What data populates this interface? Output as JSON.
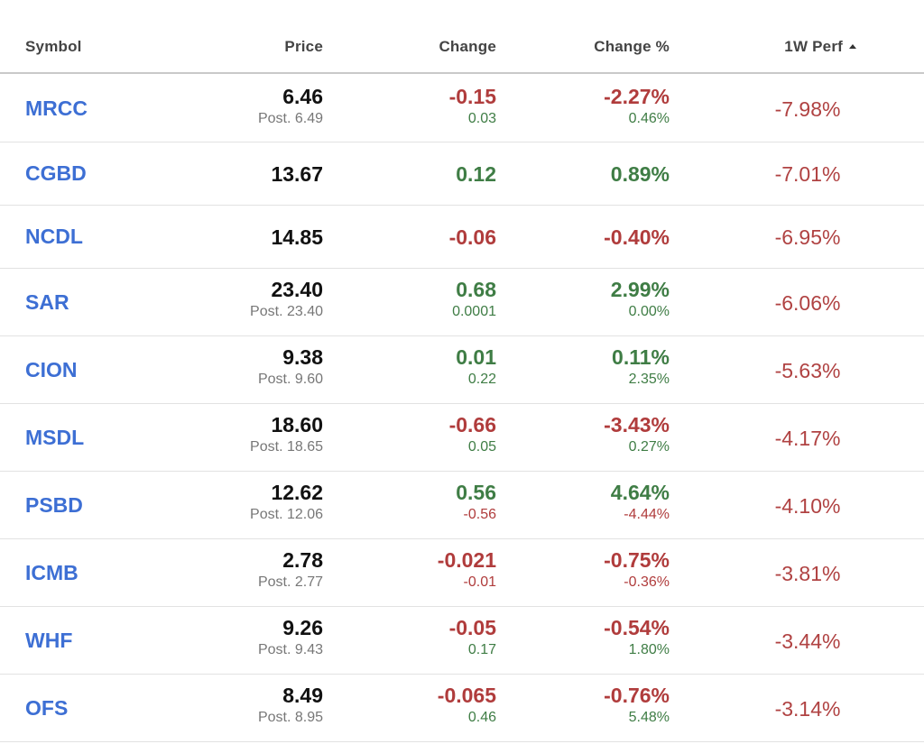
{
  "header": {
    "symbol": "Symbol",
    "price": "Price",
    "change": "Change",
    "change_pct": "Change %",
    "perf_1w": "1W Perf",
    "sort_icon": "sort-ascending-triangle"
  },
  "colors": {
    "symbol_link": "#3d6fd4",
    "negative": "#b03c3c",
    "positive": "#3f7d45",
    "price": "#111111",
    "muted": "#777777"
  },
  "rows": [
    {
      "symbol": "MRCC",
      "price": "6.46",
      "post": "Post. 6.49",
      "change": "-0.15",
      "change_dir": "neg",
      "post_change": "0.03",
      "post_change_dir": "pos",
      "change_pct": "-2.27%",
      "post_change_pct": "0.46%",
      "perf": "-7.98%"
    },
    {
      "symbol": "CGBD",
      "price": "13.67",
      "post": "",
      "change": "0.12",
      "change_dir": "pos",
      "post_change": "",
      "post_change_dir": "",
      "change_pct": "0.89%",
      "post_change_pct": "",
      "perf": "-7.01%"
    },
    {
      "symbol": "NCDL",
      "price": "14.85",
      "post": "",
      "change": "-0.06",
      "change_dir": "neg",
      "post_change": "",
      "post_change_dir": "",
      "change_pct": "-0.40%",
      "post_change_pct": "",
      "perf": "-6.95%"
    },
    {
      "symbol": "SAR",
      "price": "23.40",
      "post": "Post. 23.40",
      "change": "0.68",
      "change_dir": "pos",
      "post_change": "0.0001",
      "post_change_dir": "pos",
      "change_pct": "2.99%",
      "post_change_pct": "0.00%",
      "perf": "-6.06%"
    },
    {
      "symbol": "CION",
      "price": "9.38",
      "post": "Post. 9.60",
      "change": "0.01",
      "change_dir": "pos",
      "post_change": "0.22",
      "post_change_dir": "pos",
      "change_pct": "0.11%",
      "post_change_pct": "2.35%",
      "perf": "-5.63%"
    },
    {
      "symbol": "MSDL",
      "price": "18.60",
      "post": "Post. 18.65",
      "change": "-0.66",
      "change_dir": "neg",
      "post_change": "0.05",
      "post_change_dir": "pos",
      "change_pct": "-3.43%",
      "post_change_pct": "0.27%",
      "perf": "-4.17%"
    },
    {
      "symbol": "PSBD",
      "price": "12.62",
      "post": "Post. 12.06",
      "change": "0.56",
      "change_dir": "pos",
      "post_change": "-0.56",
      "post_change_dir": "neg",
      "change_pct": "4.64%",
      "post_change_pct": "-4.44%",
      "perf": "-4.10%"
    },
    {
      "symbol": "ICMB",
      "price": "2.78",
      "post": "Post. 2.77",
      "change": "-0.021",
      "change_dir": "neg",
      "post_change": "-0.01",
      "post_change_dir": "neg",
      "change_pct": "-0.75%",
      "post_change_pct": "-0.36%",
      "perf": "-3.81%"
    },
    {
      "symbol": "WHF",
      "price": "9.26",
      "post": "Post. 9.43",
      "change": "-0.05",
      "change_dir": "neg",
      "post_change": "0.17",
      "post_change_dir": "pos",
      "change_pct": "-0.54%",
      "post_change_pct": "1.80%",
      "perf": "-3.44%"
    },
    {
      "symbol": "OFS",
      "price": "8.49",
      "post": "Post. 8.95",
      "change": "-0.065",
      "change_dir": "neg",
      "post_change": "0.46",
      "post_change_dir": "pos",
      "change_pct": "-0.76%",
      "post_change_pct": "5.48%",
      "perf": "-3.14%"
    }
  ]
}
